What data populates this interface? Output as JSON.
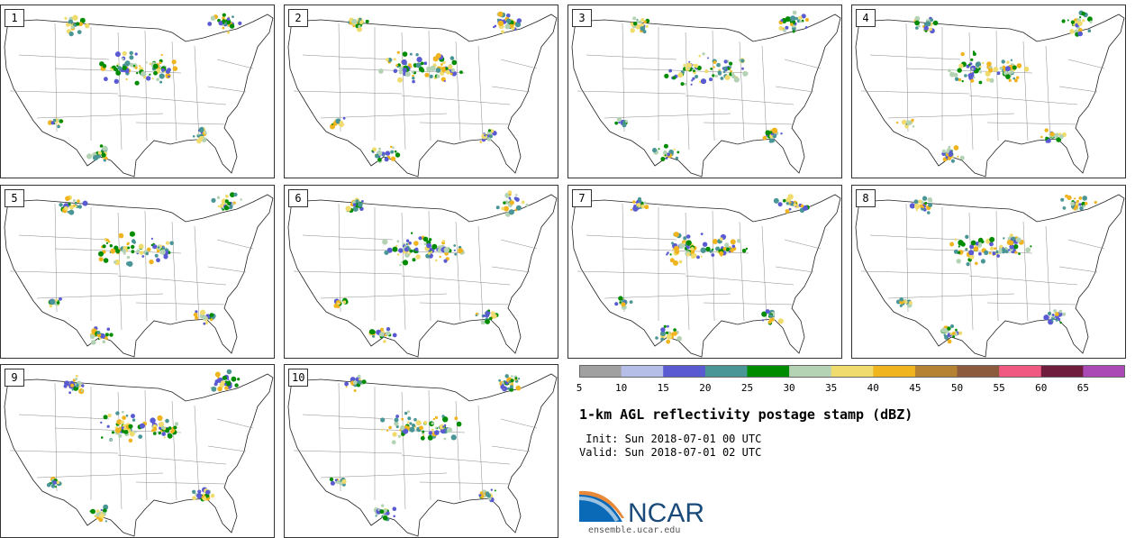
{
  "panels": [
    {
      "label": "1"
    },
    {
      "label": "2"
    },
    {
      "label": "3"
    },
    {
      "label": "4"
    },
    {
      "label": "5"
    },
    {
      "label": "6"
    },
    {
      "label": "7"
    },
    {
      "label": "8"
    },
    {
      "label": "9"
    },
    {
      "label": "10"
    }
  ],
  "colorbar": {
    "colors": [
      "#a0a0a0",
      "#b4bee6",
      "#5a5ad2",
      "#4a9696",
      "#008c00",
      "#b4d2b4",
      "#f0dc6e",
      "#f0b41e",
      "#b48232",
      "#8c5a3c",
      "#f05a82",
      "#6e1e3c",
      "#aa4ab4"
    ],
    "ticks": [
      "5",
      "10",
      "15",
      "20",
      "25",
      "30",
      "35",
      "40",
      "45",
      "50",
      "55",
      "60",
      "65"
    ]
  },
  "title": "1-km AGL reflectivity postage stamp (dBZ)",
  "init": " Init: Sun 2018-07-01 00 UTC",
  "valid": "Valid: Sun 2018-07-01 02 UTC",
  "logo": {
    "text": "NCAR",
    "url": "ensemble.ucar.edu",
    "colors": {
      "blue": "#1a4a7a",
      "light": "#3a8fd0",
      "orange": "#e8893a"
    }
  }
}
